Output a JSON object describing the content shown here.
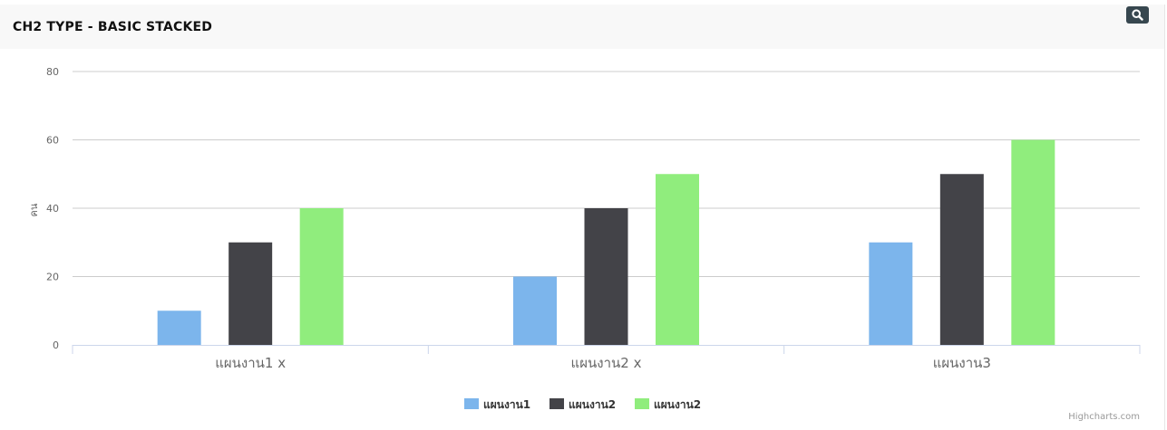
{
  "panel": {
    "title": "CH2 TYPE - BASIC STACKED",
    "zoom_icon": "search-icon"
  },
  "credits": "Highcharts.com",
  "chart_data": {
    "type": "bar",
    "title": "",
    "xlabel": "",
    "ylabel": "คน",
    "categories": [
      "แผนงาน1 x",
      "แผนงาน2 x",
      "แผนงาน3"
    ],
    "ylim": [
      0,
      80
    ],
    "yticks": [
      0,
      20,
      40,
      60,
      80
    ],
    "grid": true,
    "legend": "bottom-center",
    "series": [
      {
        "name": "แผนงาน1",
        "color": "#7cb5ec",
        "values": [
          10,
          20,
          30
        ]
      },
      {
        "name": "แผนงาน2",
        "color": "#434348",
        "values": [
          30,
          40,
          50
        ]
      },
      {
        "name": "แผนงาน2",
        "color": "#90ed7d",
        "values": [
          40,
          50,
          60
        ]
      }
    ]
  }
}
